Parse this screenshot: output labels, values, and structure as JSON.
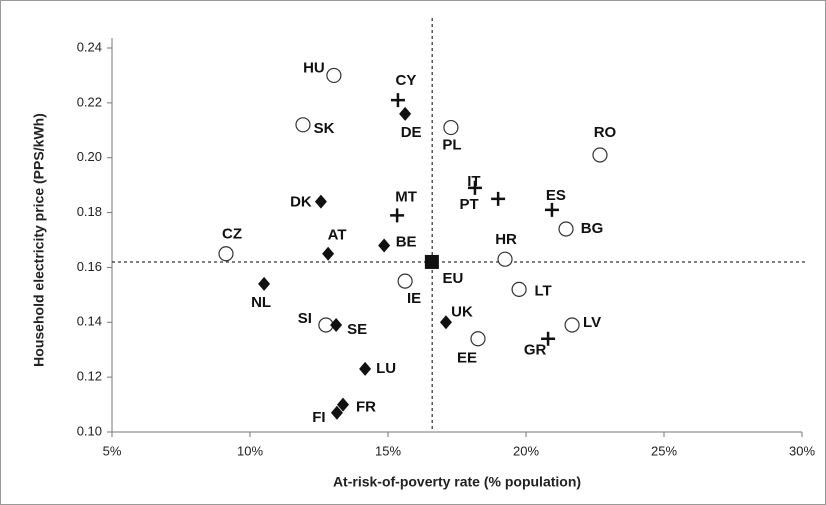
{
  "chart_data": {
    "type": "scatter",
    "xlabel": "At-risk-of-poverty rate (% population)",
    "ylabel": "Household electricity price (PPS/kWh)",
    "xlim": [
      5,
      30
    ],
    "xticks": [
      {
        "value": 5,
        "label": "5%"
      },
      {
        "value": 10,
        "label": "10%"
      },
      {
        "value": 15,
        "label": "15%"
      },
      {
        "value": 20,
        "label": "20%"
      },
      {
        "value": 25,
        "label": "25%"
      },
      {
        "value": 30,
        "label": "30%"
      }
    ],
    "ylim": [
      0.1,
      0.24
    ],
    "yticks": [
      {
        "value": 0.1,
        "label": "0.10"
      },
      0.12,
      0.14,
      0.16,
      0.18,
      {
        "value": 0.2,
        "label": "0.20"
      },
      0.22,
      0.24
    ],
    "reference_lines": {
      "x": 16.6,
      "y": 0.162
    },
    "series": [
      {
        "marker": "circle",
        "color": "#333333",
        "labels": [
          "HU",
          "SK",
          "PL",
          "RO",
          "CZ",
          "BG",
          "HR",
          "IE",
          "LT",
          "SI",
          "EE",
          "LV"
        ],
        "x": [
          13.04,
          11.92,
          17.28,
          22.68,
          9.13,
          21.45,
          19.24,
          15.62,
          19.75,
          12.75,
          18.26,
          21.67
        ],
        "values": [
          0.23,
          0.212,
          0.211,
          0.201,
          0.165,
          0.174,
          0.163,
          0.155,
          0.152,
          0.139,
          0.134,
          0.139
        ]
      },
      {
        "marker": "diamond",
        "color": "#111111",
        "labels": [
          "DE",
          "DK",
          "AT",
          "BE",
          "NL",
          "SE",
          "UK",
          "LU",
          "FR",
          "FI"
        ],
        "x": [
          15.62,
          12.57,
          12.83,
          14.86,
          10.51,
          13.12,
          17.1,
          14.17,
          13.37,
          13.15
        ],
        "values": [
          0.216,
          0.184,
          0.165,
          0.168,
          0.154,
          0.139,
          0.14,
          0.123,
          0.11,
          0.107
        ]
      },
      {
        "marker": "plus",
        "color": "#111111",
        "labels": [
          "CY",
          "MT",
          "IT",
          "PT",
          "ES",
          "GR"
        ],
        "x": [
          15.36,
          15.33,
          18.15,
          18.99,
          20.94,
          20.8
        ],
        "values": [
          0.221,
          0.179,
          0.189,
          0.185,
          0.181,
          0.134
        ]
      },
      {
        "marker": "square",
        "color": "#111111",
        "labels": [
          "EU"
        ],
        "x": [
          16.59
        ],
        "values": [
          0.162
        ]
      }
    ]
  }
}
